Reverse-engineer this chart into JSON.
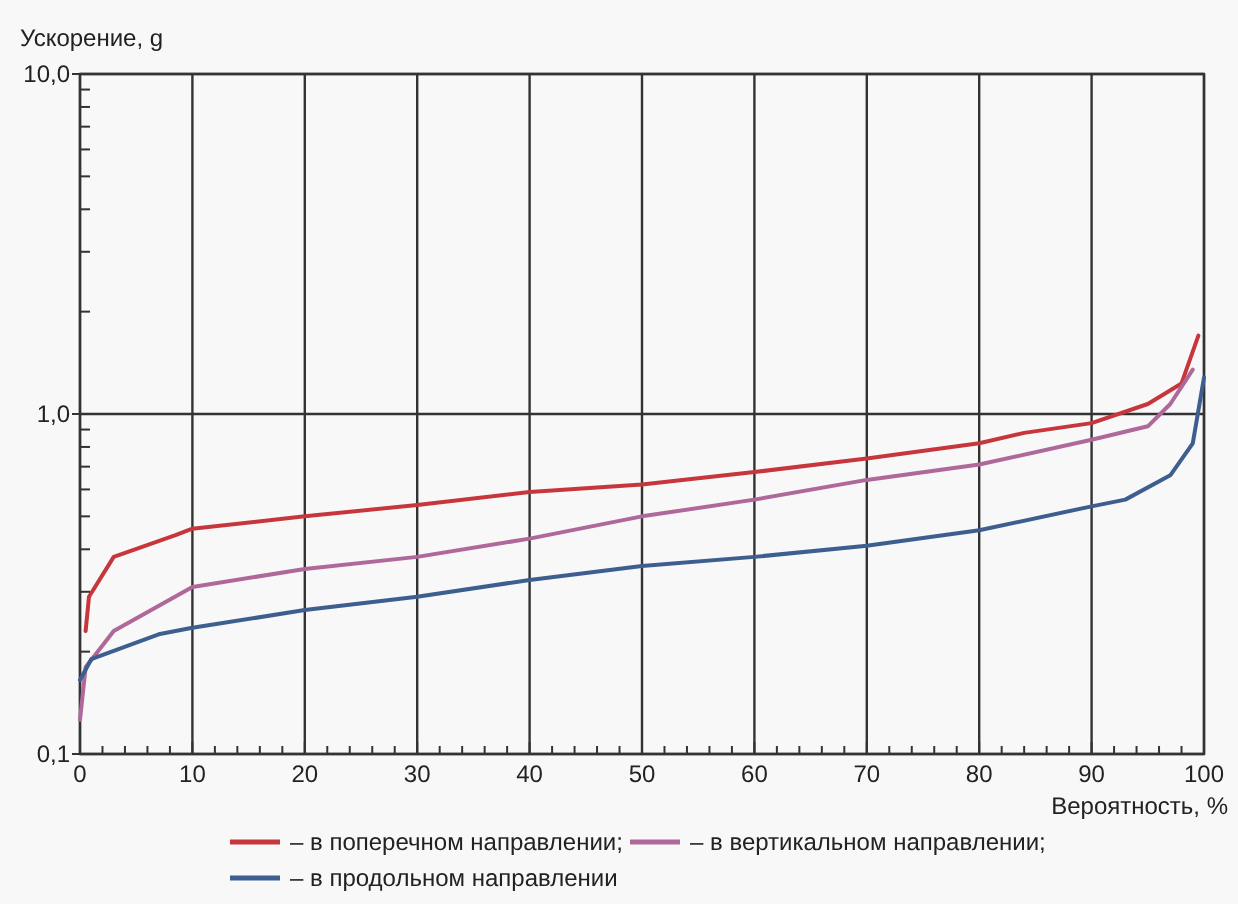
{
  "chart_data": {
    "type": "line",
    "ylabel": "Ускорение, g",
    "xlabel": "Вероятность, %",
    "log": "y",
    "grid": true,
    "legend": "bottom",
    "marker": "none",
    "line_style": "solid",
    "xlim": [
      0,
      100
    ],
    "ylim": [
      0.1,
      10
    ],
    "xticks": [
      0,
      {
        "value": 2,
        "label": null
      },
      {
        "value": 4,
        "label": null
      },
      {
        "value": 6,
        "label": null
      },
      {
        "value": 8,
        "label": null
      },
      10,
      {
        "value": 12,
        "label": null
      },
      {
        "value": 14,
        "label": null
      },
      {
        "value": 16,
        "label": null
      },
      {
        "value": 18,
        "label": null
      },
      20,
      {
        "value": 22,
        "label": null
      },
      {
        "value": 24,
        "label": null
      },
      {
        "value": 26,
        "label": null
      },
      {
        "value": 28,
        "label": null
      },
      30,
      {
        "value": 32,
        "label": null
      },
      {
        "value": 34,
        "label": null
      },
      {
        "value": 36,
        "label": null
      },
      {
        "value": 38,
        "label": null
      },
      40,
      {
        "value": 42,
        "label": null
      },
      {
        "value": 44,
        "label": null
      },
      {
        "value": 46,
        "label": null
      },
      {
        "value": 48,
        "label": null
      },
      50,
      {
        "value": 52,
        "label": null
      },
      {
        "value": 54,
        "label": null
      },
      {
        "value": 56,
        "label": null
      },
      {
        "value": 58,
        "label": null
      },
      60,
      {
        "value": 62,
        "label": null
      },
      {
        "value": 64,
        "label": null
      },
      {
        "value": 66,
        "label": null
      },
      {
        "value": 68,
        "label": null
      },
      70,
      {
        "value": 72,
        "label": null
      },
      {
        "value": 74,
        "label": null
      },
      {
        "value": 76,
        "label": null
      },
      {
        "value": 78,
        "label": null
      },
      80,
      {
        "value": 82,
        "label": null
      },
      {
        "value": 84,
        "label": null
      },
      {
        "value": 86,
        "label": null
      },
      {
        "value": 88,
        "label": null
      },
      90,
      {
        "value": 92,
        "label": null
      },
      {
        "value": 94,
        "label": null
      },
      {
        "value": 96,
        "label": null
      },
      {
        "value": 98,
        "label": null
      },
      100
    ],
    "yticks": [
      {
        "value": 0.1,
        "label": "0,1"
      },
      {
        "value": 0.2,
        "label": null
      },
      {
        "value": 0.3,
        "label": null
      },
      {
        "value": 0.4,
        "label": null
      },
      {
        "value": 0.5,
        "label": null
      },
      {
        "value": 0.6,
        "label": null
      },
      {
        "value": 0.7,
        "label": null
      },
      {
        "value": 0.8,
        "label": null
      },
      {
        "value": 0.9,
        "label": null
      },
      {
        "value": 1,
        "label": "1,0"
      },
      {
        "value": 2,
        "label": null
      },
      {
        "value": 3,
        "label": null
      },
      {
        "value": 4,
        "label": null
      },
      {
        "value": 5,
        "label": null
      },
      {
        "value": 6,
        "label": null
      },
      {
        "value": 7,
        "label": null
      },
      {
        "value": 8,
        "label": null
      },
      {
        "value": 9,
        "label": null
      },
      {
        "value": 10,
        "label": "10,0"
      }
    ],
    "series": [
      {
        "name": "– в поперечном направлении;",
        "color": "#c8363d",
        "x": [
          0.5,
          0.8,
          3,
          8.5,
          10,
          20,
          30,
          40,
          50,
          60,
          70,
          80,
          84,
          90,
          95,
          98,
          99.5
        ],
        "values": [
          0.23,
          0.29,
          0.38,
          0.44,
          0.46,
          0.5,
          0.54,
          0.59,
          0.62,
          0.675,
          0.74,
          0.82,
          0.88,
          0.94,
          1.07,
          1.23,
          1.7
        ]
      },
      {
        "name": "– в вертикальном направлении;",
        "color": "#b0689a",
        "x": [
          0,
          0.5,
          3,
          10,
          20,
          30,
          40,
          50,
          60,
          70,
          80,
          90,
          95,
          97,
          99
        ],
        "values": [
          0.126,
          0.18,
          0.23,
          0.31,
          0.35,
          0.38,
          0.43,
          0.5,
          0.56,
          0.64,
          0.71,
          0.84,
          0.92,
          1.07,
          1.35
        ]
      },
      {
        "name": "– в продольном направлении",
        "color": "#3d5e8f",
        "x": [
          0,
          1,
          7,
          10,
          20,
          30,
          40,
          50,
          60,
          70,
          80,
          90,
          93,
          97,
          99,
          100
        ],
        "values": [
          0.165,
          0.19,
          0.225,
          0.235,
          0.265,
          0.29,
          0.325,
          0.357,
          0.38,
          0.41,
          0.455,
          0.535,
          0.56,
          0.66,
          0.82,
          1.28
        ]
      }
    ]
  }
}
